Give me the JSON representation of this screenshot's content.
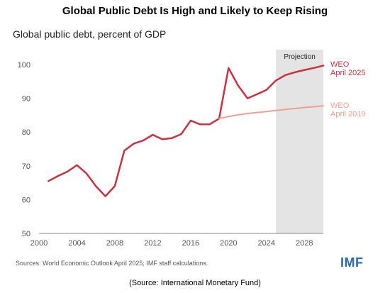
{
  "title": "Global Public Debt Is High and Likely to Keep Rising",
  "subtitle": "Global public debt, percent of GDP",
  "sources": "Sources: World Economic Outlook April 2025; IMF staff calculations.",
  "logo": "IMF",
  "credit": "(Source:  International Monetary Fund)",
  "colors": {
    "weo2025": "#c8323f",
    "weo2019": "#eda191",
    "projection_band": "#e4e4e4",
    "axis_text": "#555555",
    "grid": "#ececec"
  },
  "chart_data": {
    "type": "line",
    "xlim": [
      2000,
      2030
    ],
    "ylim": [
      50,
      100
    ],
    "xticks": [
      "2000",
      "2004",
      "2008",
      "2012",
      "2016",
      "2020",
      "2024",
      "2028"
    ],
    "yticks": [
      "50",
      "60",
      "70",
      "80",
      "90",
      "100"
    ],
    "projection": {
      "label": "Projection",
      "start": 2025,
      "end": 2030
    },
    "grid": false,
    "series": [
      {
        "name_lines": [
          "WEO",
          "April 2025"
        ],
        "color": "#c8323f",
        "x": [
          2001,
          2002,
          2003,
          2004,
          2005,
          2006,
          2007,
          2008,
          2009,
          2010,
          2011,
          2012,
          2013,
          2014,
          2015,
          2016,
          2017,
          2018,
          2019,
          2020,
          2021,
          2022,
          2023,
          2024,
          2025,
          2026,
          2027,
          2028,
          2029,
          2030
        ],
        "y": [
          65.5,
          67,
          68.3,
          70.2,
          67.8,
          64,
          61,
          64,
          74.5,
          76.6,
          77.5,
          79.2,
          77.9,
          78.2,
          79.4,
          83.4,
          82.3,
          82.3,
          84,
          99,
          93.8,
          90,
          91.2,
          92.5,
          95.3,
          96.9,
          97.7,
          98.4,
          99,
          99.7
        ]
      },
      {
        "name_lines": [
          "WEO",
          "April 2019"
        ],
        "color": "#eda191",
        "x": [
          2019,
          2020,
          2021,
          2022,
          2023,
          2024,
          2025,
          2026,
          2027,
          2028,
          2029,
          2030
        ],
        "y": [
          84,
          84.6,
          85.1,
          85.5,
          85.8,
          86.1,
          86.4,
          86.7,
          87,
          87.3,
          87.5,
          87.8
        ]
      }
    ]
  }
}
